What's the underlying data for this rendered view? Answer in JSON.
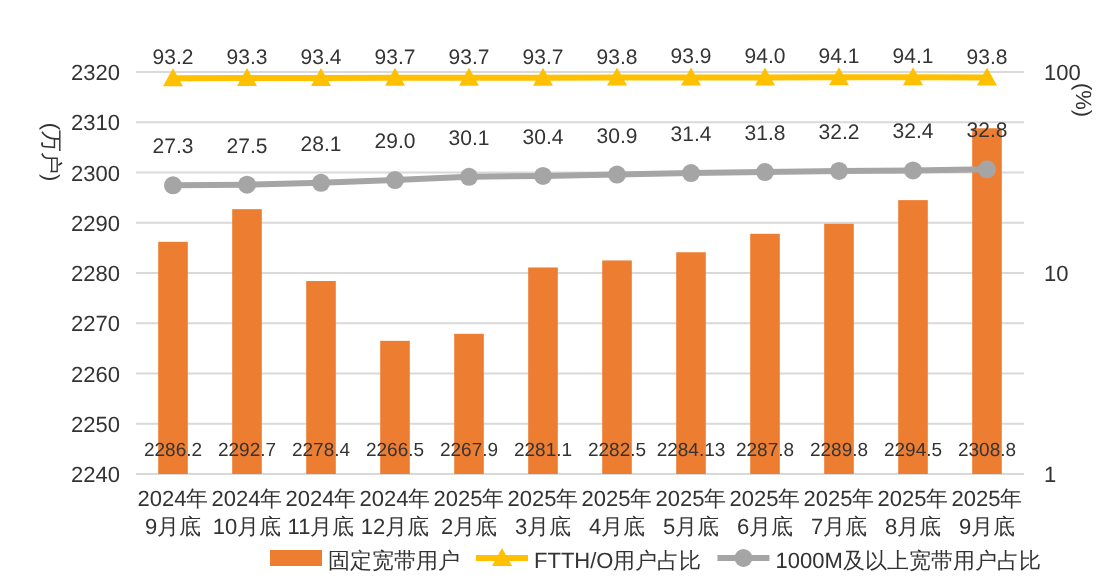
{
  "chart_data": {
    "type": "bar",
    "ylabel": "(万户)",
    "y2label": "(%)",
    "categories": [
      "2024年\n9月底",
      "2024年\n10月底",
      "2024年\n11月底",
      "2024年\n12月底",
      "2025年\n2月底",
      "2025年\n3月底",
      "2025年\n4月底",
      "2025年\n5月底",
      "2025年\n6月底",
      "2025年\n7月底",
      "2025年\n8月底",
      "2025年\n9月底"
    ],
    "series": [
      {
        "name": "固定宽带用户",
        "color": "#ed7d31",
        "values": [
          2286.2,
          2292.7,
          2278.4,
          2266.5,
          2267.9,
          2281.1,
          2282.5,
          2284.13,
          2287.8,
          2289.8,
          2294.5,
          2308.8
        ],
        "value_labels": [
          "2286.2",
          "2292.7",
          "2278.4",
          "2266.5",
          "2267.9",
          "2281.1",
          "2282.5",
          "2284.13",
          "2287.8",
          "2289.8",
          "2294.5",
          "2308.8"
        ]
      },
      {
        "name": "FTTH/O用户占比",
        "type": "line",
        "axis": "y2",
        "color": "#ffc000",
        "marker": "triangle",
        "values": [
          93.2,
          93.3,
          93.4,
          93.7,
          93.7,
          93.7,
          93.8,
          93.9,
          94.0,
          94.1,
          94.1,
          93.8
        ],
        "value_labels": [
          "93.2",
          "93.3",
          "93.4",
          "93.7",
          "93.7",
          "93.7",
          "93.8",
          "93.9",
          "94.0",
          "94.1",
          "94.1",
          "93.8"
        ]
      },
      {
        "name": "1000M及以上宽带用户占比",
        "type": "line",
        "axis": "y2",
        "color": "#a5a5a5",
        "marker": "circle",
        "values": [
          27.3,
          27.5,
          28.1,
          29.0,
          30.1,
          30.4,
          30.9,
          31.4,
          31.8,
          32.2,
          32.4,
          32.8
        ],
        "value_labels": [
          "27.3",
          "27.5",
          "28.1",
          "29.0",
          "30.1",
          "30.4",
          "30.9",
          "31.4",
          "31.8",
          "32.2",
          "32.4",
          "32.8"
        ]
      }
    ],
    "ylim": [
      2240,
      2320
    ],
    "yticks": [
      2240,
      2250,
      2260,
      2270,
      2280,
      2290,
      2300,
      2310,
      2320
    ],
    "y2lim": [
      1,
      100
    ],
    "y2ticks": [
      1,
      10,
      100
    ],
    "log": "y2",
    "grid": "y",
    "legend": "bottom"
  }
}
